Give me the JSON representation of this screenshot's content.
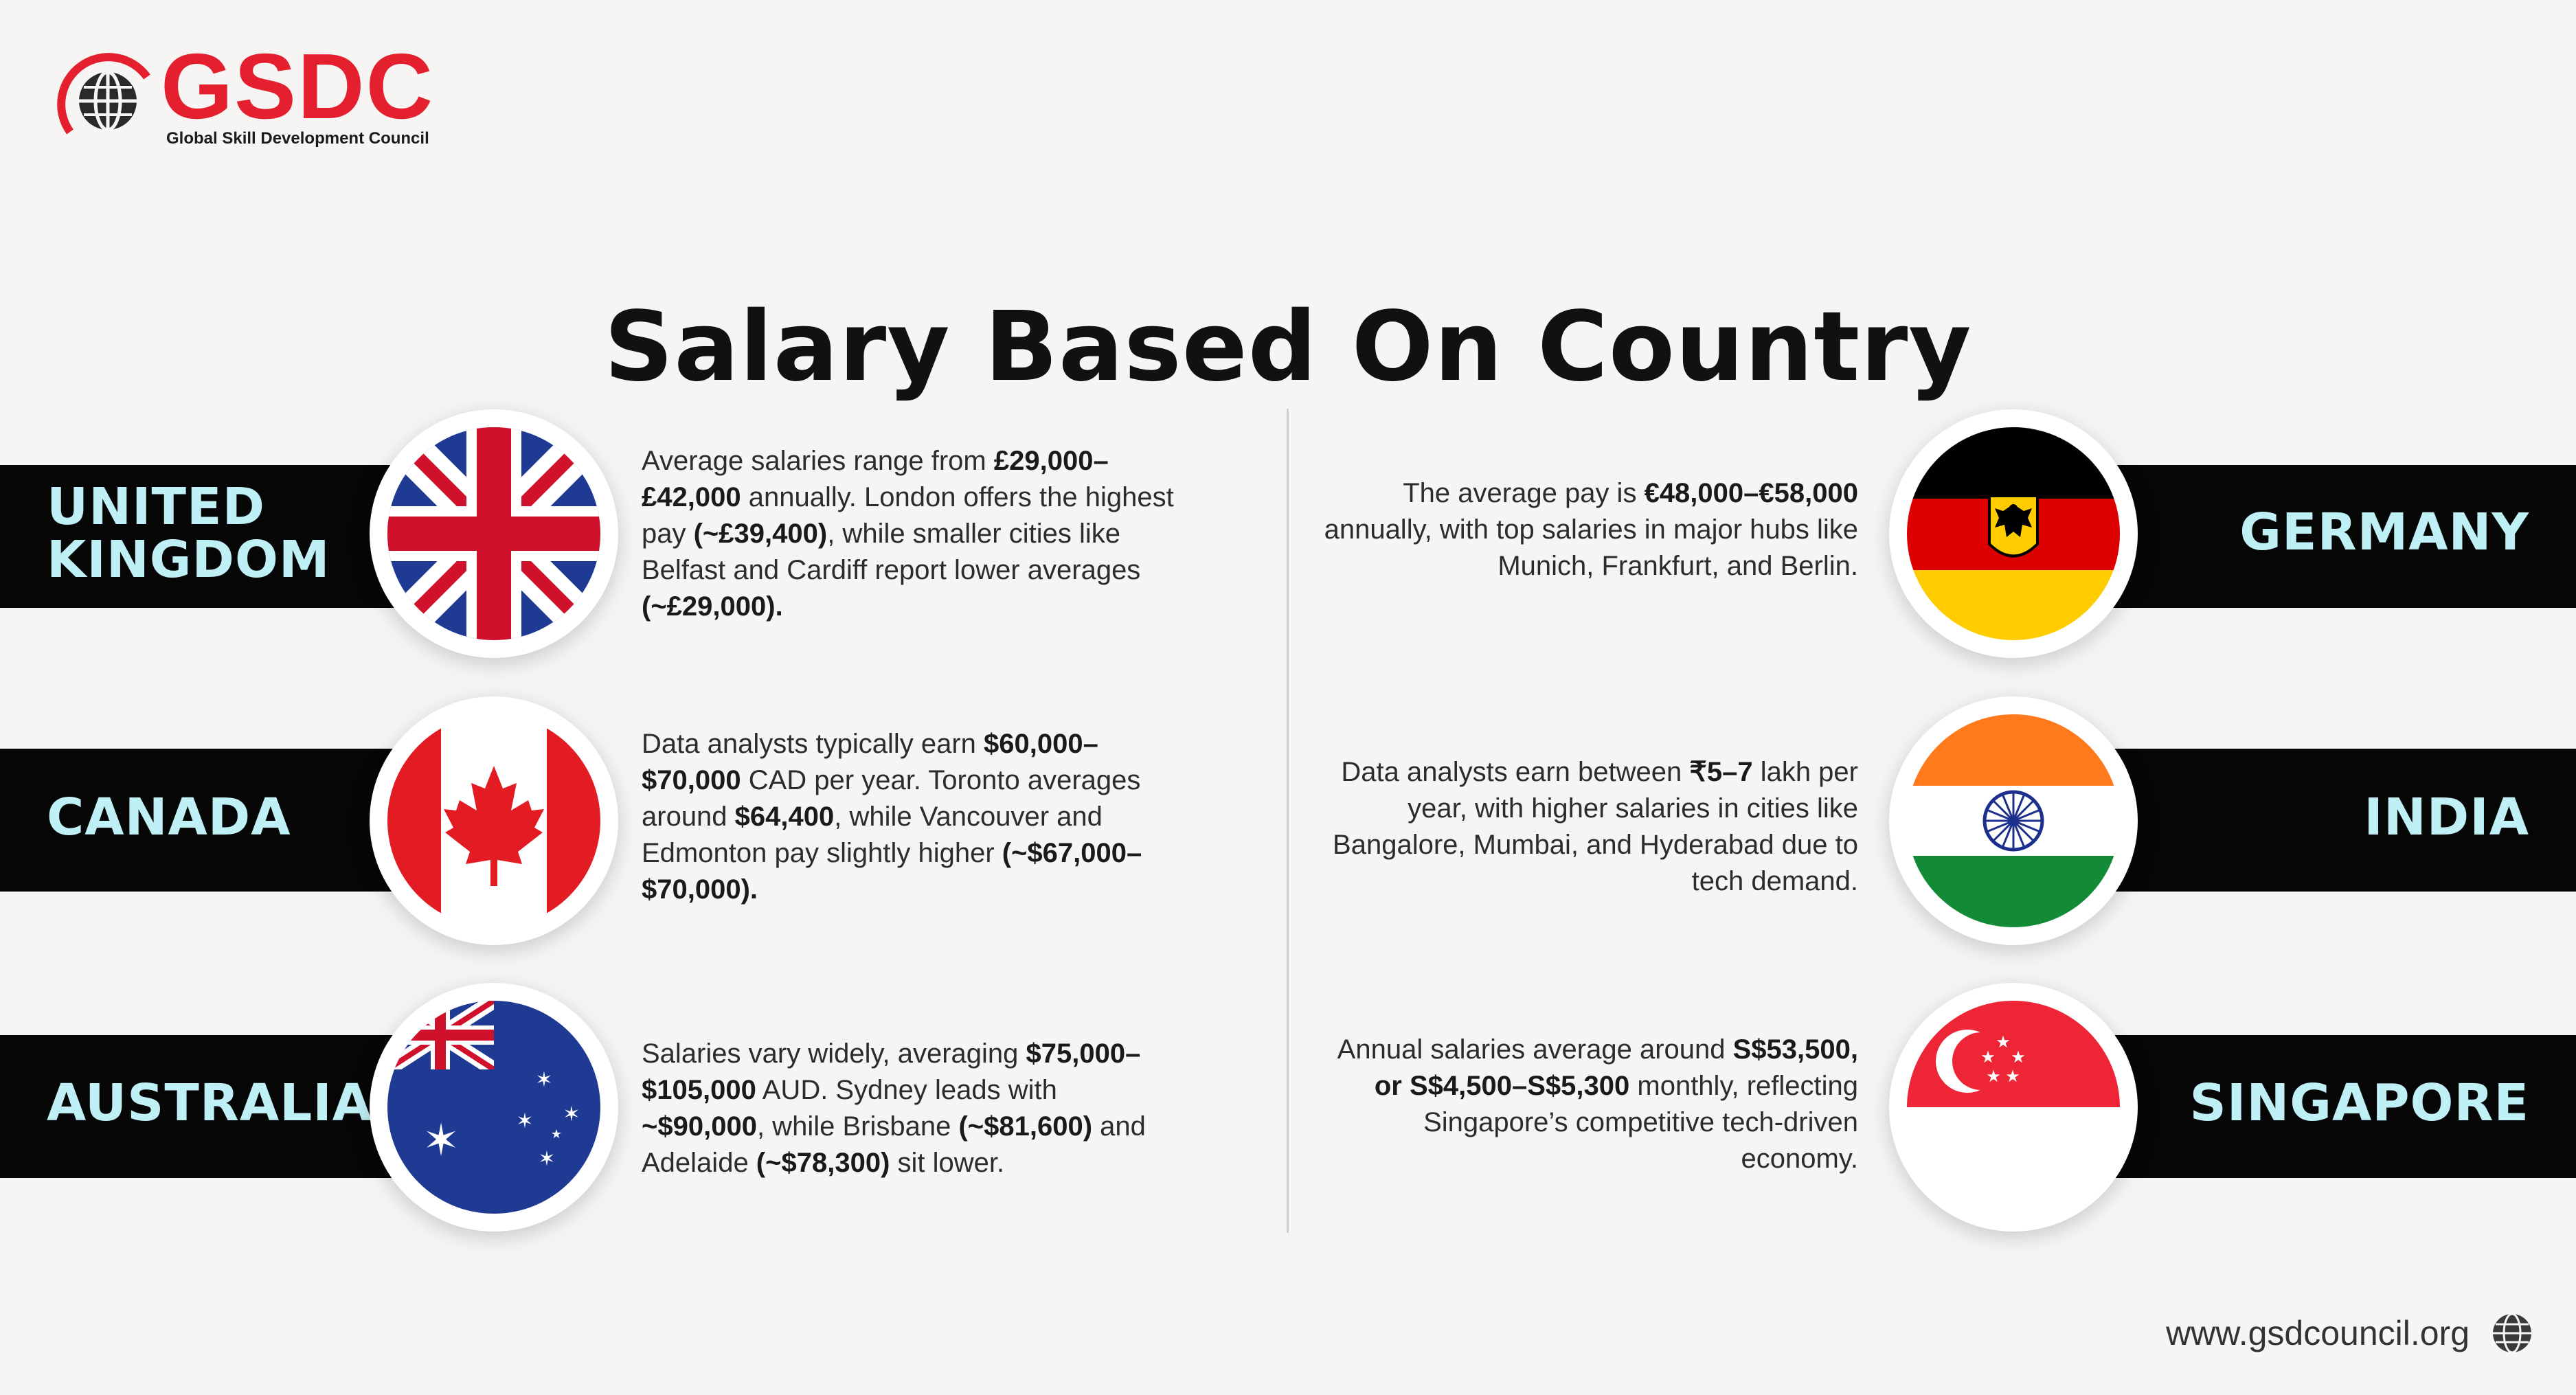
{
  "brand": {
    "name": "GSDC",
    "tagline": "Global Skill Development Council",
    "colors": {
      "accent": "#e5202e",
      "band": "#060606",
      "country_text": "#bff0f6"
    }
  },
  "title": "Salary Based On Country",
  "countries": [
    {
      "name_lines": [
        "UNITED",
        "KINGDOM"
      ],
      "flag": "uk-flag-icon",
      "desc": [
        {
          "t": "Average salaries range from "
        },
        {
          "t": "£29,000–£42,000",
          "b": true
        },
        {
          "t": " annually. London offers the highest pay "
        },
        {
          "t": "(~£39,400)",
          "b": true
        },
        {
          "t": ", while smaller cities like Belfast and Cardiff report lower averages "
        },
        {
          "t": "(~£29,000).",
          "b": true
        }
      ]
    },
    {
      "name_lines": [
        "CANADA"
      ],
      "flag": "canada-flag-icon",
      "desc": [
        {
          "t": "Data analysts typically earn "
        },
        {
          "t": "$60,000–$70,000",
          "b": true
        },
        {
          "t": " CAD per year. Toronto averages around "
        },
        {
          "t": "$64,400",
          "b": true
        },
        {
          "t": ", while Vancouver and Edmonton pay slightly higher "
        },
        {
          "t": "(~$67,000–$70,000).",
          "b": true
        }
      ]
    },
    {
      "name_lines": [
        "AUSTRALIA"
      ],
      "flag": "australia-flag-icon",
      "desc": [
        {
          "t": "Salaries vary widely, averaging "
        },
        {
          "t": "$75,000–$105,000",
          "b": true
        },
        {
          "t": " AUD. Sydney leads with "
        },
        {
          "t": "~$90,000",
          "b": true
        },
        {
          "t": ", while Brisbane "
        },
        {
          "t": "(~$81,600)",
          "b": true
        },
        {
          "t": " and Adelaide "
        },
        {
          "t": "(~$78,300)",
          "b": true
        },
        {
          "t": " sit lower."
        }
      ]
    },
    {
      "name_lines": [
        "GERMANY"
      ],
      "flag": "germany-flag-icon",
      "desc": [
        {
          "t": "The average pay is "
        },
        {
          "t": "€48,000–€58,000",
          "b": true
        },
        {
          "t": " annually, with top salaries in major hubs like Munich, Frankfurt, and Berlin."
        }
      ]
    },
    {
      "name_lines": [
        "INDIA"
      ],
      "flag": "india-flag-icon",
      "desc": [
        {
          "t": "Data analysts earn between "
        },
        {
          "t": "₹5–7",
          "b": true
        },
        {
          "t": " lakh per year, with higher salaries in cities like Bangalore, Mumbai, and Hyderabad due to tech demand."
        }
      ]
    },
    {
      "name_lines": [
        "SINGAPORE"
      ],
      "flag": "singapore-flag-icon",
      "desc": [
        {
          "t": "Annual salaries average around "
        },
        {
          "t": "S$53,500, or S$4,500–S$5,300",
          "b": true
        },
        {
          "t": " monthly, reflecting Singapore’s competitive tech-driven economy."
        }
      ]
    }
  ],
  "footer": {
    "url": "www.gsdcouncil.org",
    "icon": "globe-icon"
  }
}
